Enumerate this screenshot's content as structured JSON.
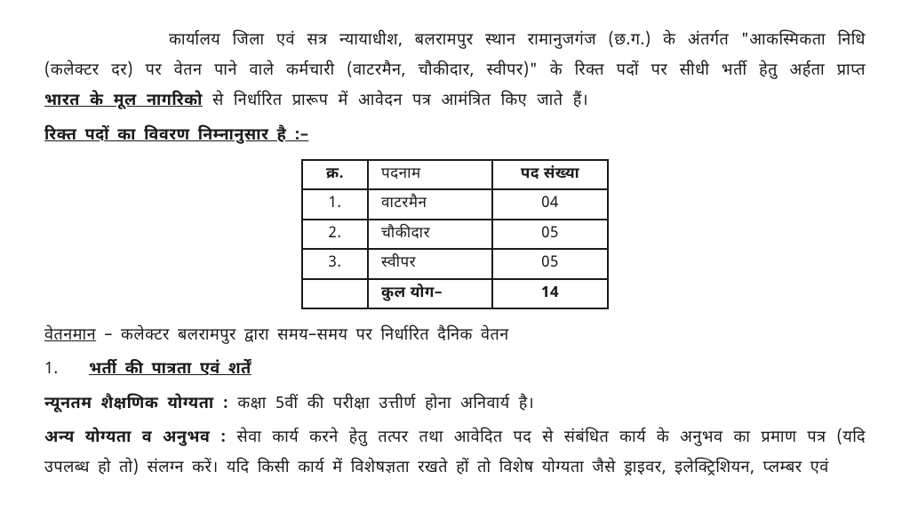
{
  "para1": {
    "seg1": "कार्यालय जिला एवं सत्र न्यायाधीश, बलरामपुर स्थान रामानुजगंज (छ.ग.) के अंतर्गत \"आकस्मिकता निधि (कलेक्टर दर) पर वेतन पाने वाले कर्मचारी (वाटरमैन, चौकीदार, स्वीपर)\" के रिक्त पदों पर सीधी भर्ती हेतु अर्हता प्राप्त ",
    "ul": "भारत के मूल नागरिको",
    "seg2": " से निर्धारित प्रारूप में आवेदन पत्र आमंत्रित किए जाते हैं।"
  },
  "vacancy_heading": "रिक्त पदों का विवरण निम्नानुसार है :–",
  "table": {
    "headers": {
      "sr": "क्र.",
      "name": "पदनाम",
      "count": "पद संख्या"
    },
    "rows": [
      {
        "sr": "1.",
        "name": "वाटरमैन",
        "count": "04"
      },
      {
        "sr": "2.",
        "name": "चौकीदार",
        "count": "05"
      },
      {
        "sr": "3.",
        "name": "स्वीपर",
        "count": "05"
      }
    ],
    "total": {
      "sr": "",
      "name": "कुल योग–",
      "count": "14"
    }
  },
  "pay": {
    "label": "वेतनमान",
    "text": " – कलेक्टर बलरामपुर द्वारा समय–समय पर निर्धारित दैनिक वेतन"
  },
  "section1": {
    "num": "1.",
    "title": "भर्ती की पात्रता एवं शर्तें"
  },
  "edu": {
    "label": "न्यूनतम शैक्षणिक योग्यता : ",
    "text": "कक्षा 5वीं की परीक्षा उत्तीर्ण होना अनिवार्य है।"
  },
  "other": {
    "label": "अन्य योग्यता व अनुभव : ",
    "text": "सेवा कार्य करने हेतु तत्पर तथा आवेदित पद से संबंधित कार्य के अनुभव का प्रमाण पत्र (यदि उपलब्ध हो तो) संलग्न करें। यदि किसी कार्य में विशेषज्ञता रखते हों तो विशेष योग्यता जैसे ड्राइवर, इलेक्ट्रिशियन, प्लम्बर एवं"
  }
}
